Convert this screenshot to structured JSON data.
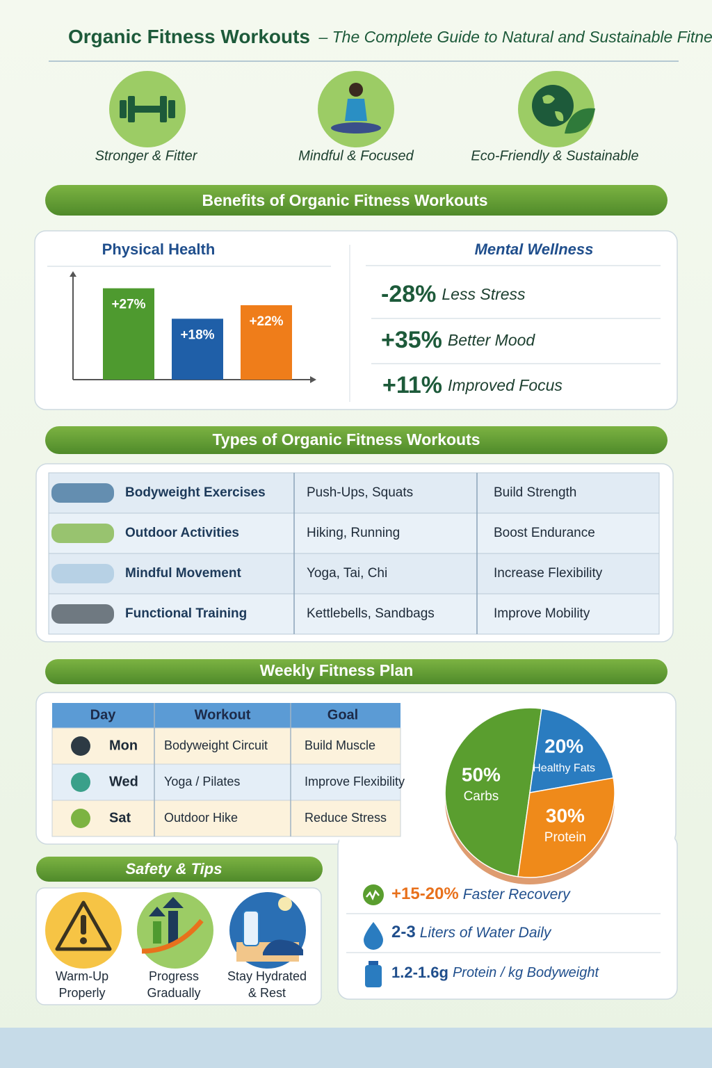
{
  "header": {
    "title": "Organic Fitness Workouts",
    "subtitle": "– The Complete Guide to Natural and Sustainable Fitness"
  },
  "highlights": [
    "Stronger & Fitter",
    "Mindful & Focused",
    "Eco-Friendly & Sustainable"
  ],
  "benefits": {
    "title": "Benefits of Organic Fitness Workouts",
    "physical_health": {
      "type": "bar",
      "title": "Physical Health",
      "values": [
        27,
        18,
        22
      ],
      "value_labels": [
        "+27%",
        "+18%",
        "+22%"
      ],
      "colors": [
        "#4e9a2f",
        "#1f5fa8",
        "#ef7d1a"
      ],
      "ylim": [
        0,
        30
      ]
    },
    "mental_wellness": {
      "title": "Mental Wellness",
      "stats": [
        {
          "value": "-28%",
          "label": "Less Stress"
        },
        {
          "value": "+35%",
          "label": "Better Mood"
        },
        {
          "value": "+11%",
          "label": "Improved Focus"
        }
      ]
    }
  },
  "types": {
    "title": "Types of Organic Fitness Workouts",
    "rows": [
      [
        "Bodyweight Exercises",
        "Push-Ups, Squats",
        "Build Strength"
      ],
      [
        "Outdoor Activities",
        "Hiking, Running",
        "Boost Endurance"
      ],
      [
        "Mindful Movement",
        "Yoga, Tai, Chi",
        "Increase Flexibility"
      ],
      [
        "Functional Training",
        "Kettlebells, Sandbags",
        "Improve Mobility"
      ]
    ]
  },
  "weekly_plan": {
    "title": "Weekly Fitness Plan",
    "columns": [
      "Day",
      "Workout",
      "Goal"
    ],
    "rows": [
      [
        "Mon",
        "Bodyweight Circuit",
        "Build Muscle"
      ],
      [
        "Wed",
        "Yoga / Pilates",
        "Improve Flexibility"
      ],
      [
        "Sat",
        "Outdoor Hike",
        "Reduce Stress"
      ]
    ]
  },
  "nutrition": {
    "type": "pie",
    "categories": [
      "Carbs",
      "Healthy Fats",
      "Protein"
    ],
    "values": [
      50,
      20,
      30
    ],
    "value_labels": [
      "50%",
      "20%",
      "30%"
    ],
    "colors": [
      "#5a9e2f",
      "#2a7cc0",
      "#ef8a1a"
    ]
  },
  "facts": [
    {
      "value": "+15-20%",
      "label": "Faster Recovery"
    },
    {
      "value": "2-3",
      "label": "Liters of Water Daily"
    },
    {
      "value": "1.2-1.6g",
      "label": "Protein / kg Bodyweight"
    }
  ],
  "safety": {
    "title": "Safety & Tips",
    "tips": [
      [
        "Warm-Up",
        "Properly"
      ],
      [
        "Progress",
        "Gradually"
      ],
      [
        "Stay Hydrated",
        "& Rest"
      ]
    ]
  }
}
